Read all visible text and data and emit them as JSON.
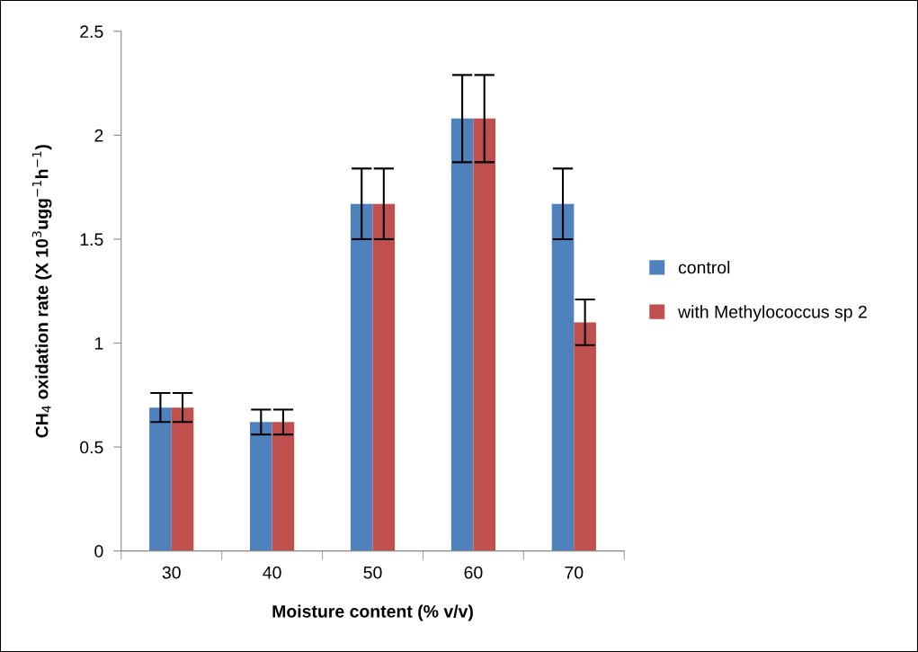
{
  "chart_data": {
    "type": "bar",
    "xlabel": "Moisture content (% v/v)",
    "ylabel": "CH$_{4}$ oxidation rate (X 10$^{3}$ugg$^{−1}$h$^{−1}$)",
    "categories": [
      "30",
      "40",
      "50",
      "60",
      "70"
    ],
    "series": [
      {
        "name": "control",
        "color": "#4f81bd",
        "values": [
          0.69,
          0.62,
          1.67,
          2.08,
          1.67
        ],
        "errors": [
          0.07,
          0.06,
          0.17,
          0.21,
          0.17
        ]
      },
      {
        "name": "with Methylococcus sp 2",
        "color": "#c0504d",
        "values": [
          0.69,
          0.62,
          1.67,
          2.08,
          1.1
        ],
        "errors": [
          0.07,
          0.06,
          0.17,
          0.21,
          0.11
        ]
      }
    ],
    "ylim": [
      0,
      2.5
    ],
    "yticks": [
      0,
      0.5,
      1,
      1.5,
      2,
      2.5
    ],
    "grid": false,
    "legend": "right"
  }
}
